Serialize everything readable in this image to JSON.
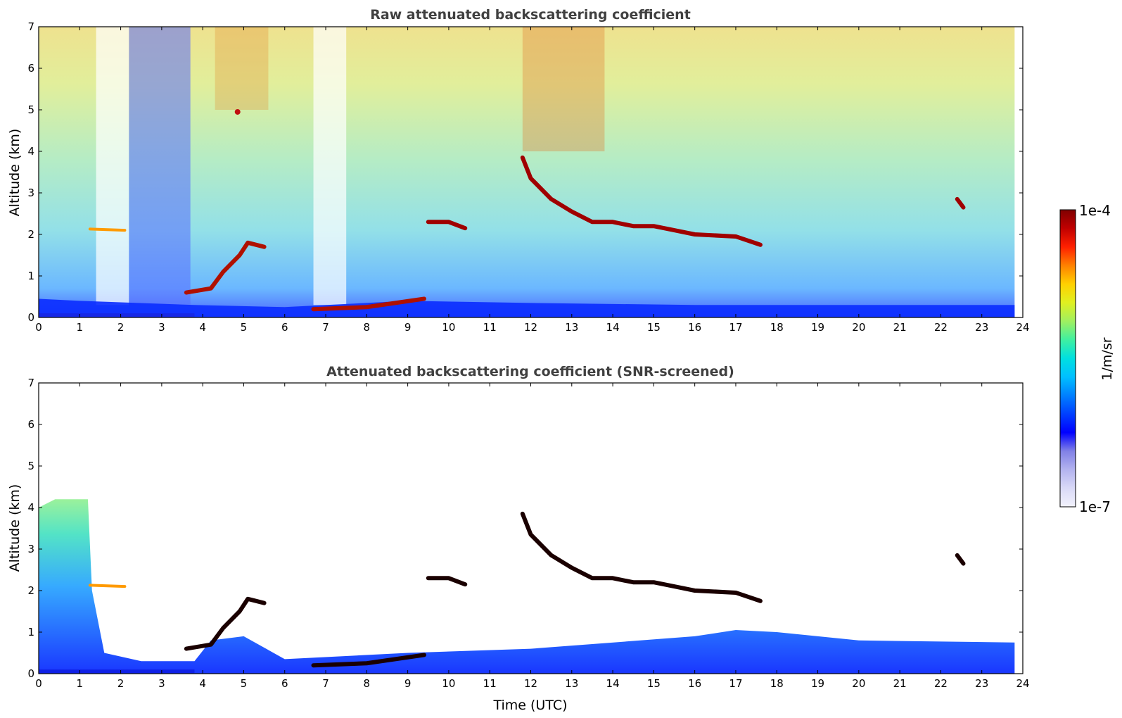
{
  "chart_data": [
    {
      "type": "heatmap",
      "title": "Raw attenuated backscattering coefficient",
      "xlabel": "",
      "ylabel": "Altitude (km)",
      "xlim": [
        0,
        24
      ],
      "ylim": [
        0,
        7
      ],
      "x_ticks": [
        "0",
        "1",
        "2",
        "3",
        "4",
        "5",
        "6",
        "7",
        "8",
        "9",
        "10",
        "11",
        "12",
        "13",
        "14",
        "15",
        "16",
        "17",
        "18",
        "19",
        "20",
        "21",
        "22",
        "23",
        "24"
      ],
      "y_ticks": [
        "0",
        "1",
        "2",
        "3",
        "4",
        "5",
        "6",
        "7"
      ],
      "data_end_time": 23.8,
      "features": [
        {
          "kind": "surface_layer",
          "t_start": 0,
          "t_end": 3.8,
          "alt_km": 0.05
        },
        {
          "kind": "boundary_layer_top",
          "points": [
            [
              0,
              0.45
            ],
            [
              1,
              0.4
            ],
            [
              3.8,
              0.3
            ],
            [
              6,
              0.25
            ],
            [
              9,
              0.4
            ],
            [
              12,
              0.35
            ],
            [
              16,
              0.3
            ],
            [
              23.8,
              0.3
            ]
          ]
        },
        {
          "kind": "aerosol_layer",
          "points": [
            [
              1.25,
              2.13
            ],
            [
              2.1,
              2.1
            ]
          ]
        },
        {
          "kind": "rising_layer",
          "points": [
            [
              3.6,
              0.6
            ],
            [
              4.2,
              0.7
            ],
            [
              4.5,
              1.1
            ],
            [
              4.9,
              1.5
            ],
            [
              5.1,
              1.8
            ],
            [
              5.5,
              1.7
            ]
          ]
        },
        {
          "kind": "rising_layer",
          "points": [
            [
              6.7,
              0.2
            ],
            [
              8.0,
              0.25
            ],
            [
              9.4,
              0.45
            ]
          ]
        },
        {
          "kind": "cloud_layer",
          "points": [
            [
              9.5,
              2.3
            ],
            [
              10.0,
              2.3
            ],
            [
              10.4,
              2.15
            ]
          ]
        },
        {
          "kind": "cloud_layer",
          "points": [
            [
              11.8,
              3.85
            ],
            [
              12.0,
              3.35
            ],
            [
              12.5,
              2.85
            ],
            [
              13.0,
              2.55
            ],
            [
              13.5,
              2.3
            ],
            [
              14.0,
              2.3
            ],
            [
              14.5,
              2.2
            ],
            [
              15.0,
              2.2
            ],
            [
              15.5,
              2.1
            ],
            [
              16.0,
              2.0
            ],
            [
              17.0,
              1.95
            ],
            [
              17.6,
              1.75
            ]
          ]
        },
        {
          "kind": "cloud_fragment",
          "points": [
            [
              22.4,
              2.85
            ],
            [
              22.55,
              2.65
            ]
          ]
        },
        {
          "kind": "aerosol_spot",
          "points": [
            [
              4.85,
              4.95
            ]
          ]
        }
      ]
    },
    {
      "type": "heatmap",
      "title": "Attenuated backscattering coefficient (SNR-screened)",
      "xlabel": "Time (UTC)",
      "ylabel": "Altitude (km)",
      "xlim": [
        0,
        24
      ],
      "ylim": [
        0,
        7
      ],
      "x_ticks": [
        "0",
        "1",
        "2",
        "3",
        "4",
        "5",
        "6",
        "7",
        "8",
        "9",
        "10",
        "11",
        "12",
        "13",
        "14",
        "15",
        "16",
        "17",
        "18",
        "19",
        "20",
        "21",
        "22",
        "23",
        "24"
      ],
      "y_ticks": [
        "0",
        "1",
        "2",
        "3",
        "4",
        "5",
        "6",
        "7"
      ],
      "data_end_time": 23.8,
      "features": [
        {
          "kind": "surface_layer",
          "t_start": 0,
          "t_end": 3.8,
          "alt_km": 0.05
        },
        {
          "kind": "boundary_layer_fill",
          "points": [
            [
              0,
              4.0
            ],
            [
              0.4,
              4.2
            ],
            [
              1.2,
              4.2
            ],
            [
              1.3,
              2.0
            ],
            [
              1.6,
              0.5
            ],
            [
              2.5,
              0.3
            ],
            [
              3.8,
              0.3
            ],
            [
              4.2,
              0.8
            ],
            [
              5.0,
              0.9
            ],
            [
              6.0,
              0.35
            ],
            [
              9.0,
              0.5
            ],
            [
              12.0,
              0.6
            ],
            [
              16.0,
              0.9
            ],
            [
              17.0,
              1.05
            ],
            [
              18.0,
              1.0
            ],
            [
              19.0,
              0.9
            ],
            [
              20.0,
              0.8
            ],
            [
              23.8,
              0.75
            ]
          ]
        },
        {
          "kind": "aerosol_layer",
          "points": [
            [
              1.25,
              2.13
            ],
            [
              2.1,
              2.1
            ]
          ]
        },
        {
          "kind": "rising_layer",
          "points": [
            [
              3.6,
              0.6
            ],
            [
              4.2,
              0.7
            ],
            [
              4.5,
              1.1
            ],
            [
              4.9,
              1.5
            ],
            [
              5.1,
              1.8
            ],
            [
              5.5,
              1.7
            ]
          ]
        },
        {
          "kind": "rising_layer",
          "points": [
            [
              6.7,
              0.2
            ],
            [
              8.0,
              0.25
            ],
            [
              9.4,
              0.45
            ]
          ]
        },
        {
          "kind": "cloud_layer",
          "points": [
            [
              9.5,
              2.3
            ],
            [
              10.0,
              2.3
            ],
            [
              10.4,
              2.15
            ]
          ]
        },
        {
          "kind": "cloud_layer",
          "points": [
            [
              11.8,
              3.85
            ],
            [
              12.0,
              3.35
            ],
            [
              12.5,
              2.85
            ],
            [
              13.0,
              2.55
            ],
            [
              13.5,
              2.3
            ],
            [
              14.0,
              2.3
            ],
            [
              14.5,
              2.2
            ],
            [
              15.0,
              2.2
            ],
            [
              15.5,
              2.1
            ],
            [
              16.0,
              2.0
            ],
            [
              17.0,
              1.95
            ],
            [
              17.6,
              1.75
            ]
          ]
        },
        {
          "kind": "cloud_fragment",
          "points": [
            [
              22.4,
              2.85
            ],
            [
              22.55,
              2.65
            ]
          ]
        }
      ]
    }
  ],
  "colorbar": {
    "max_label": "1e-4",
    "min_label": "1e-7",
    "units_label": "1/m/sr",
    "colors": [
      "#f2f2fc",
      "#d9d9f7",
      "#b3b3ef",
      "#8080e6",
      "#0000ff",
      "#0040ff",
      "#0080ff",
      "#00c0ff",
      "#00e0e0",
      "#40f0a0",
      "#a0f060",
      "#e0f020",
      "#ffd000",
      "#ff8000",
      "#ff2000",
      "#c00000",
      "#800000"
    ]
  }
}
